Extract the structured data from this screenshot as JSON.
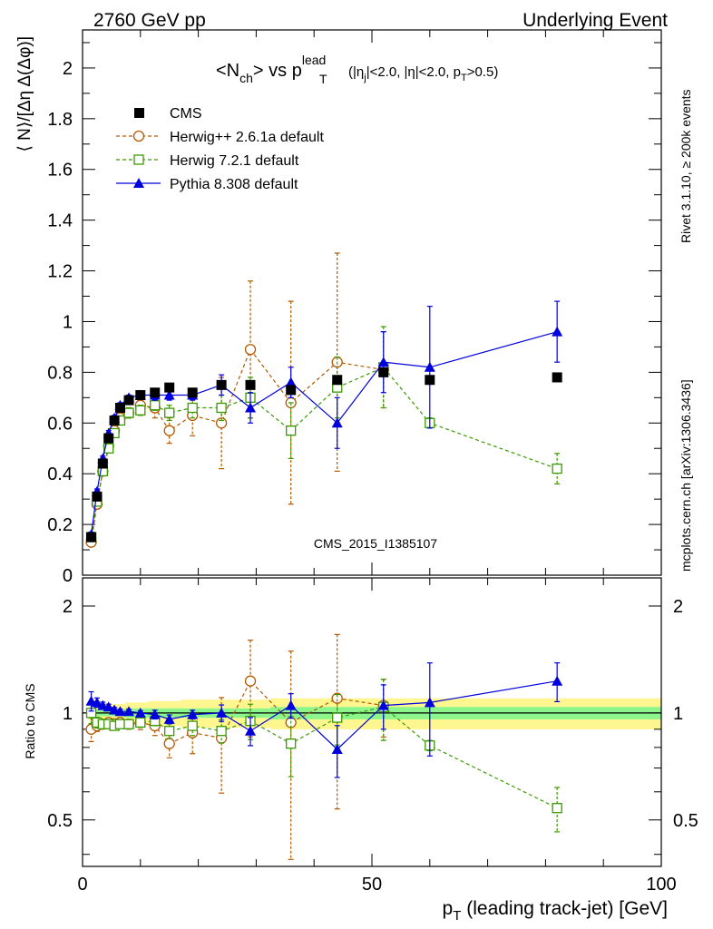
{
  "header": {
    "left": "2760 GeV pp",
    "right": "Underlying Event"
  },
  "title": {
    "main": "<N",
    "main_sub": "ch",
    "main_mid": "> vs p",
    "main_sup": "lead",
    "main_sub2": "T",
    "cuts_open": "(|η",
    "cuts_sub1": "j",
    "cuts_mid": "|<2.0, |η|<2.0, p",
    "cuts_sub2": "T",
    "cuts_close": ">0.5)"
  },
  "side_labels": {
    "rivet": "Rivet 3.1.10, ≥ 200k events",
    "mcplots": "mcplots.cern.ch [arXiv:1306.3436]"
  },
  "watermark": "CMS_2015_I1385107",
  "axes": {
    "ylabel_top": "⟨ N⟩/[Δη Δ(Δφ)]",
    "ylabel_bottom": "Ratio to CMS",
    "xlabel_main": "p",
    "xlabel_sub": "T",
    "xlabel_rest": " (leading track-jet) [GeV]"
  },
  "legend": {
    "cms": "CMS",
    "herwigpp": "Herwig++ 2.6.1a default",
    "herwig7": "Herwig 7.2.1 default",
    "pythia": "Pythia 8.308 default"
  },
  "colors": {
    "cms": "#000000",
    "herwigpp": "#b35900",
    "herwig7": "#3a9a00",
    "pythia": "#0000dd",
    "band_inner": "#8cf58c",
    "band_outer": "#fff68f"
  },
  "chart_data": {
    "type": "scatter",
    "x_range": [
      0,
      100
    ],
    "top_ylim": [
      0,
      2.15
    ],
    "ratio_ylim": [
      0.37,
      2.4
    ],
    "ratio_log": true,
    "x_ticks": [
      "0",
      "50",
      "100"
    ],
    "top_y_ticks": [
      "0",
      "0.2",
      "0.4",
      "0.6",
      "0.8",
      "1",
      "1.2",
      "1.4",
      "1.6",
      "1.8",
      "2"
    ],
    "ratio_y_ticks": [
      "0.5",
      "1",
      "2"
    ],
    "x": [
      1.5,
      2.5,
      3.5,
      4.5,
      5.5,
      6.5,
      8,
      10,
      12.5,
      15,
      19,
      24,
      29,
      36,
      44,
      52,
      60,
      82
    ],
    "series": [
      {
        "name": "CMS",
        "key": "cms",
        "values": [
          0.15,
          0.31,
          0.44,
          0.54,
          0.61,
          0.66,
          0.69,
          0.71,
          0.72,
          0.74,
          0.72,
          0.75,
          0.75,
          0.73,
          0.77,
          0.8,
          0.77,
          0.78
        ]
      },
      {
        "name": "Herwig++ 2.6.1a default",
        "key": "herwigpp",
        "values": [
          0.13,
          0.28,
          0.41,
          0.51,
          0.57,
          0.62,
          0.64,
          0.67,
          0.66,
          0.57,
          0.63,
          0.6,
          0.89,
          0.68,
          0.84,
          0.81,
          null,
          null
        ],
        "errors": [
          0.01,
          0.01,
          0.01,
          0.01,
          0.02,
          0.02,
          0.02,
          0.03,
          0.04,
          0.05,
          0.08,
          0.18,
          0.27,
          0.4,
          0.43,
          0.15,
          null,
          null
        ],
        "ratio": [
          0.9,
          0.92,
          0.93,
          0.94,
          0.93,
          0.94,
          0.93,
          0.94,
          0.92,
          0.82,
          0.88,
          0.85,
          1.23,
          0.94,
          1.1,
          1.05,
          null,
          null
        ]
      },
      {
        "name": "Herwig 7.2.1 default",
        "key": "herwig7",
        "values": [
          0.15,
          0.29,
          0.41,
          0.5,
          0.56,
          0.61,
          0.64,
          0.65,
          0.67,
          0.64,
          0.66,
          0.66,
          0.7,
          0.57,
          0.74,
          0.82,
          0.6,
          0.42
        ],
        "errors": [
          0.01,
          0.01,
          0.01,
          0.01,
          0.01,
          0.01,
          0.02,
          0.02,
          0.02,
          0.03,
          0.04,
          0.05,
          0.08,
          0.11,
          0.12,
          0.16,
          0.02,
          0.06
        ],
        "ratio": [
          1.0,
          0.94,
          0.93,
          0.93,
          0.92,
          0.93,
          0.93,
          0.94,
          0.95,
          0.89,
          0.92,
          0.89,
          0.95,
          0.82,
          0.97,
          1.04,
          0.81,
          0.54
        ]
      },
      {
        "name": "Pythia 8.308 default",
        "key": "pythia",
        "values": [
          0.16,
          0.33,
          0.46,
          0.56,
          0.62,
          0.67,
          0.7,
          0.71,
          0.71,
          0.71,
          0.71,
          0.75,
          0.66,
          0.76,
          0.6,
          0.84,
          0.82,
          0.96
        ],
        "errors": [
          0.01,
          0.01,
          0.01,
          0.01,
          0.01,
          0.01,
          0.01,
          0.01,
          0.02,
          0.02,
          0.02,
          0.04,
          0.06,
          0.06,
          0.1,
          0.12,
          0.24,
          0.12
        ],
        "ratio": [
          1.08,
          1.07,
          1.05,
          1.04,
          1.02,
          1.01,
          1.01,
          1.0,
          0.99,
          0.96,
          0.99,
          1.0,
          0.89,
          1.05,
          0.79,
          1.05,
          1.07,
          1.23
        ]
      }
    ],
    "band_inner": [
      0.02,
      0.02,
      0.02,
      0.02,
      0.02,
      0.02,
      0.03,
      0.03,
      0.03,
      0.03,
      0.03,
      0.03,
      0.03,
      0.04,
      0.04,
      0.04,
      0.04,
      0.04
    ],
    "band_outer": [
      0.05,
      0.05,
      0.05,
      0.06,
      0.06,
      0.06,
      0.07,
      0.07,
      0.08,
      0.08,
      0.09,
      0.09,
      0.09,
      0.1,
      0.1,
      0.1,
      0.1,
      0.1
    ]
  }
}
